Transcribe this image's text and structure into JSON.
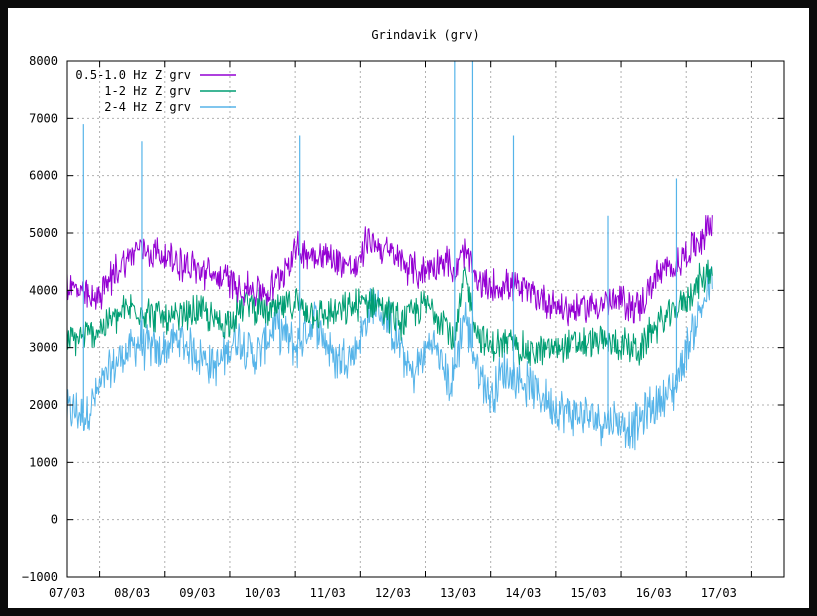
{
  "chart_data": {
    "type": "line",
    "title": "Grindavik (grv)",
    "xlabel": "",
    "ylabel": "",
    "ylim": [
      -1000,
      8000
    ],
    "yticks": [
      -1000,
      0,
      1000,
      2000,
      3000,
      4000,
      5000,
      6000,
      7000,
      8000
    ],
    "xlim": [
      "06/03 12:00",
      "17/03 12:00"
    ],
    "xticks": [
      "07/03",
      "08/03",
      "09/03",
      "10/03",
      "11/03",
      "12/03",
      "13/03",
      "14/03",
      "15/03",
      "16/03",
      "17/03"
    ],
    "x_unit": "days, ticks at midnight of each date",
    "grid": true,
    "legend_position": "top-left",
    "series": [
      {
        "name": "0.5-1.0 Hz Z grv",
        "color": "#9400d3",
        "x": [
          6.5,
          6.9,
          7.3,
          7.6,
          8.0,
          8.5,
          8.9,
          9.2,
          9.6,
          10.0,
          10.5,
          10.8,
          10.95,
          11.1,
          11.5,
          11.9,
          12.3,
          12.45,
          12.6,
          12.8,
          13.0,
          13.3,
          13.6,
          13.9,
          14.2,
          14.6,
          15.0,
          15.3,
          15.5,
          15.8,
          16.1,
          16.4
        ],
        "y": [
          4100,
          3800,
          4400,
          4750,
          4600,
          4350,
          4200,
          4050,
          3950,
          4700,
          4600,
          4450,
          4350,
          4900,
          4600,
          4300,
          4550,
          4250,
          4700,
          4100,
          4050,
          4100,
          3950,
          3800,
          3650,
          3750,
          3800,
          3700,
          4200,
          4400,
          4750,
          5200
        ]
      },
      {
        "name": "1-2 Hz Z grv",
        "color": "#009e73",
        "x": [
          6.5,
          6.9,
          7.2,
          7.5,
          7.8,
          8.1,
          8.5,
          8.9,
          9.3,
          9.6,
          10.0,
          10.4,
          10.8,
          11.2,
          11.6,
          12.0,
          12.3,
          12.45,
          12.6,
          12.8,
          13.0,
          13.3,
          13.6,
          14.0,
          14.3,
          14.6,
          15.0,
          15.3,
          15.5,
          15.8,
          16.1,
          16.4
        ],
        "y": [
          3100,
          3250,
          3500,
          3700,
          3600,
          3450,
          3650,
          3400,
          3800,
          3600,
          3800,
          3550,
          3650,
          3850,
          3450,
          3750,
          3500,
          3000,
          4300,
          3250,
          3000,
          3100,
          2900,
          3000,
          3050,
          3100,
          3050,
          2950,
          3350,
          3600,
          4000,
          4400
        ]
      },
      {
        "name": "2-4 Hz Z grv",
        "color": "#56b4e9",
        "x": [
          6.5,
          6.8,
          7.0,
          7.3,
          7.6,
          7.9,
          8.2,
          8.5,
          8.8,
          9.1,
          9.4,
          9.7,
          10.0,
          10.3,
          10.6,
          10.9,
          11.2,
          11.5,
          11.8,
          12.1,
          12.4,
          12.6,
          12.8,
          13.0,
          13.2,
          13.5,
          13.8,
          14.1,
          14.4,
          14.7,
          15.0,
          15.2,
          15.5,
          15.8,
          16.1,
          16.4
        ],
        "y": [
          1900,
          1850,
          2300,
          2800,
          3100,
          2900,
          3150,
          2900,
          2650,
          3200,
          2850,
          3400,
          3000,
          3500,
          2800,
          2900,
          3800,
          3300,
          2500,
          3150,
          2300,
          3600,
          2600,
          2150,
          2600,
          2400,
          2150,
          1900,
          1800,
          1750,
          1700,
          1600,
          2000,
          2250,
          3300,
          4200
        ]
      }
    ],
    "spikes": [
      {
        "series": "2-4 Hz Z grv",
        "x": 6.75,
        "y": 6900
      },
      {
        "series": "2-4 Hz Z grv",
        "x": 7.65,
        "y": 6600
      },
      {
        "series": "2-4 Hz Z grv",
        "x": 10.07,
        "y": 6700
      },
      {
        "series": "2-4 Hz Z grv",
        "x": 12.45,
        "y": 8000
      },
      {
        "series": "2-4 Hz Z grv",
        "x": 12.72,
        "y": 8000
      },
      {
        "series": "2-4 Hz Z grv",
        "x": 13.35,
        "y": 6700
      },
      {
        "series": "2-4 Hz Z grv",
        "x": 14.8,
        "y": 5300
      },
      {
        "series": "2-4 Hz Z grv",
        "x": 15.85,
        "y": 5950
      }
    ]
  }
}
